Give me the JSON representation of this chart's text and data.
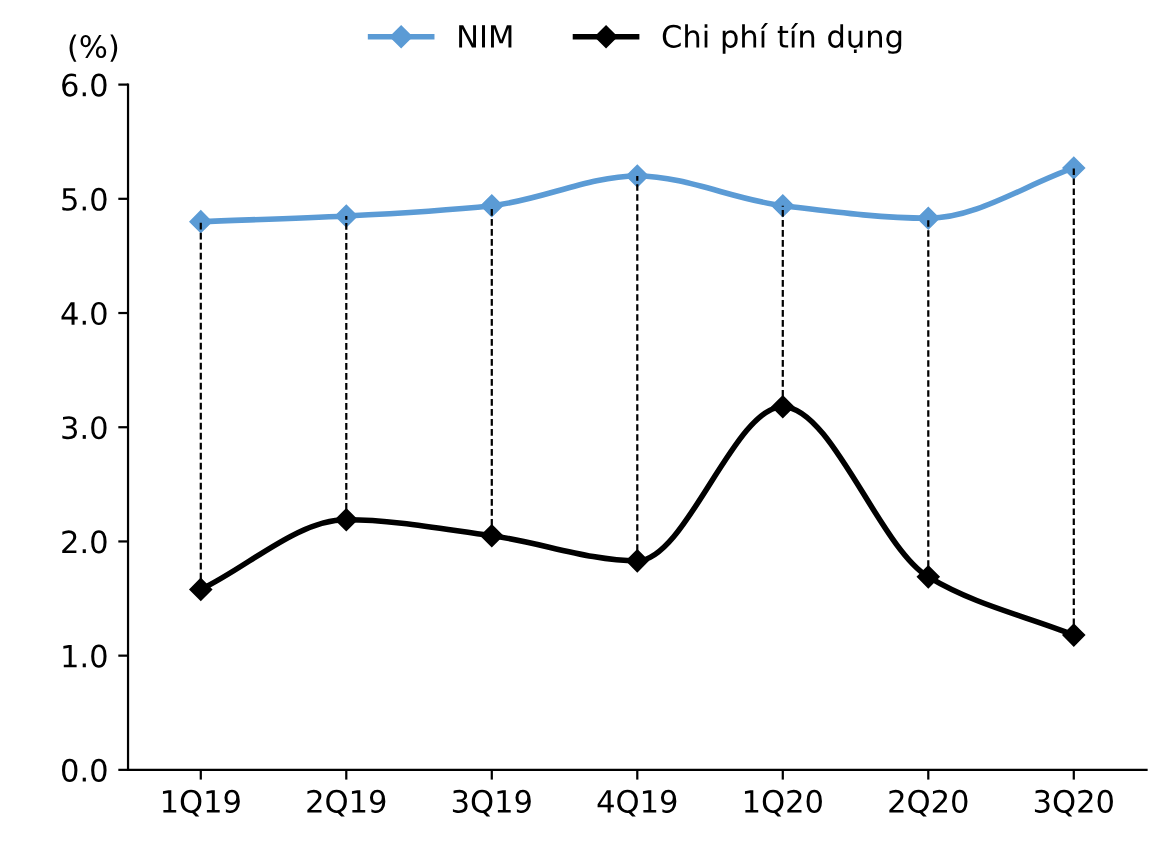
{
  "chart_data": {
    "type": "line",
    "ylabel": "(%)",
    "categories": [
      "1Q19",
      "2Q19",
      "3Q19",
      "4Q19",
      "1Q20",
      "2Q20",
      "3Q20"
    ],
    "series": [
      {
        "name": "NIM",
        "color": "#5b9bd5",
        "values": [
          4.8,
          4.85,
          4.94,
          5.2,
          4.94,
          4.83,
          5.27
        ]
      },
      {
        "name": "Chi phí tín dụng",
        "color": "#000000",
        "values": [
          1.58,
          2.19,
          2.05,
          1.83,
          3.18,
          1.69,
          1.18
        ],
        "errors": [
          [
            1.58,
            4.8
          ],
          [
            2.19,
            4.85
          ],
          [
            2.05,
            4.94
          ],
          [
            1.83,
            5.2
          ],
          [
            3.18,
            4.94
          ],
          [
            1.69,
            4.83
          ],
          [
            1.18,
            5.27
          ]
        ]
      }
    ],
    "ylim": [
      0,
      6
    ],
    "yticks": [
      {
        "value": 0,
        "label": "0.0"
      },
      {
        "value": 1,
        "label": "1.0"
      },
      {
        "value": 2,
        "label": "2.0"
      },
      {
        "value": 3,
        "label": "3.0"
      },
      {
        "value": 4,
        "label": "4.0"
      },
      {
        "value": 5,
        "label": "5.0"
      },
      {
        "value": 6,
        "label": "6.0"
      }
    ],
    "grid": false,
    "legend": "top",
    "marker": "diamond",
    "line_style": "solid"
  }
}
